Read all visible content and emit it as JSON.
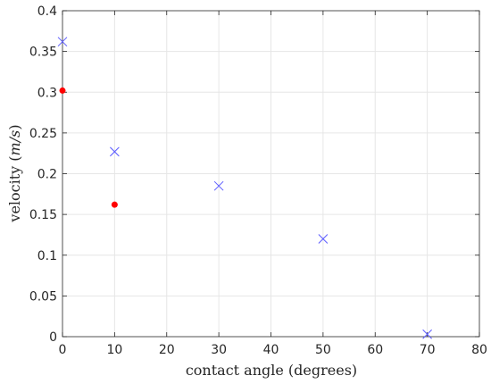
{
  "chart_data": {
    "type": "scatter",
    "title": "",
    "xlabel": "contact angle (degrees)",
    "ylabel_parts": {
      "text": "velocity",
      "open": "(",
      "unit": "m/s",
      "close": ")"
    },
    "xlim": [
      0,
      80
    ],
    "ylim": [
      0,
      0.4
    ],
    "grid": true,
    "xticks": [
      0,
      10,
      20,
      30,
      40,
      50,
      60,
      70,
      80
    ],
    "xtick_labels": [
      "0",
      "10",
      "20",
      "30",
      "40",
      "50",
      "60",
      "70",
      "80"
    ],
    "yticks": [
      0,
      0.05,
      0.1,
      0.15,
      0.2,
      0.25,
      0.3,
      0.35,
      0.4
    ],
    "ytick_labels": [
      "0",
      "0.05",
      "0.1",
      "0.15",
      "0.2",
      "0.25",
      "0.3",
      "0.35",
      "0.4"
    ],
    "series": [
      {
        "marker": "x",
        "color": "#5b5bff",
        "x": [
          0,
          10,
          30,
          50,
          70
        ],
        "y": [
          0.362,
          0.227,
          0.185,
          0.12,
          0.003
        ]
      },
      {
        "marker": "dot",
        "color": "#ff0000",
        "x": [
          0,
          10
        ],
        "y": [
          0.302,
          0.162
        ]
      }
    ]
  },
  "colors": {
    "axis": "#262626",
    "grid": "#e6e6e6"
  }
}
